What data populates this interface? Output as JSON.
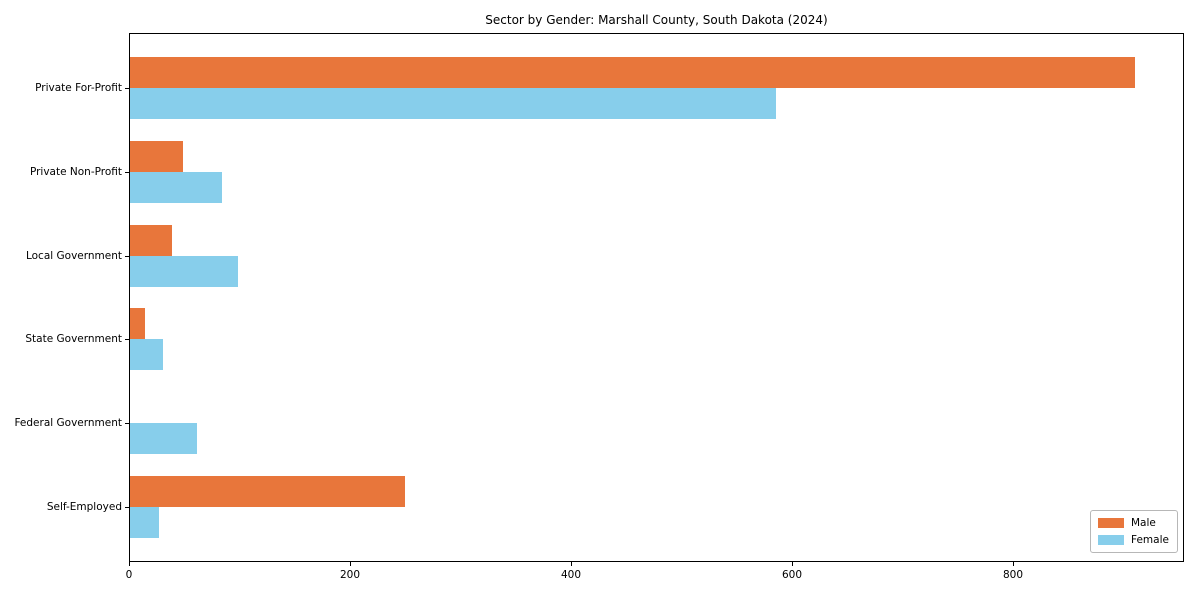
{
  "chart_data": {
    "type": "bar",
    "orientation": "horizontal",
    "title": "Sector by Gender: Marshall County, South Dakota (2024)",
    "categories": [
      "Private For-Profit",
      "Private Non-Profit",
      "Local Government",
      "State Government",
      "Federal Government",
      "Self-Employed"
    ],
    "series": [
      {
        "name": "Male",
        "color": "#e8763b",
        "values": [
          910,
          48,
          38,
          14,
          0,
          249
        ]
      },
      {
        "name": "Female",
        "color": "#87ceeb",
        "values": [
          585,
          83,
          98,
          30,
          61,
          26
        ]
      }
    ],
    "xlabel": "",
    "ylabel": "",
    "xlim": [
      0,
      955
    ],
    "xticks": [
      0,
      200,
      400,
      600,
      800
    ],
    "grid": false,
    "legend": {
      "position": "lower right",
      "entries": [
        "Male",
        "Female"
      ]
    },
    "axis_color": "#000000",
    "text_color": "#000000",
    "background_color": "#ffffff"
  }
}
